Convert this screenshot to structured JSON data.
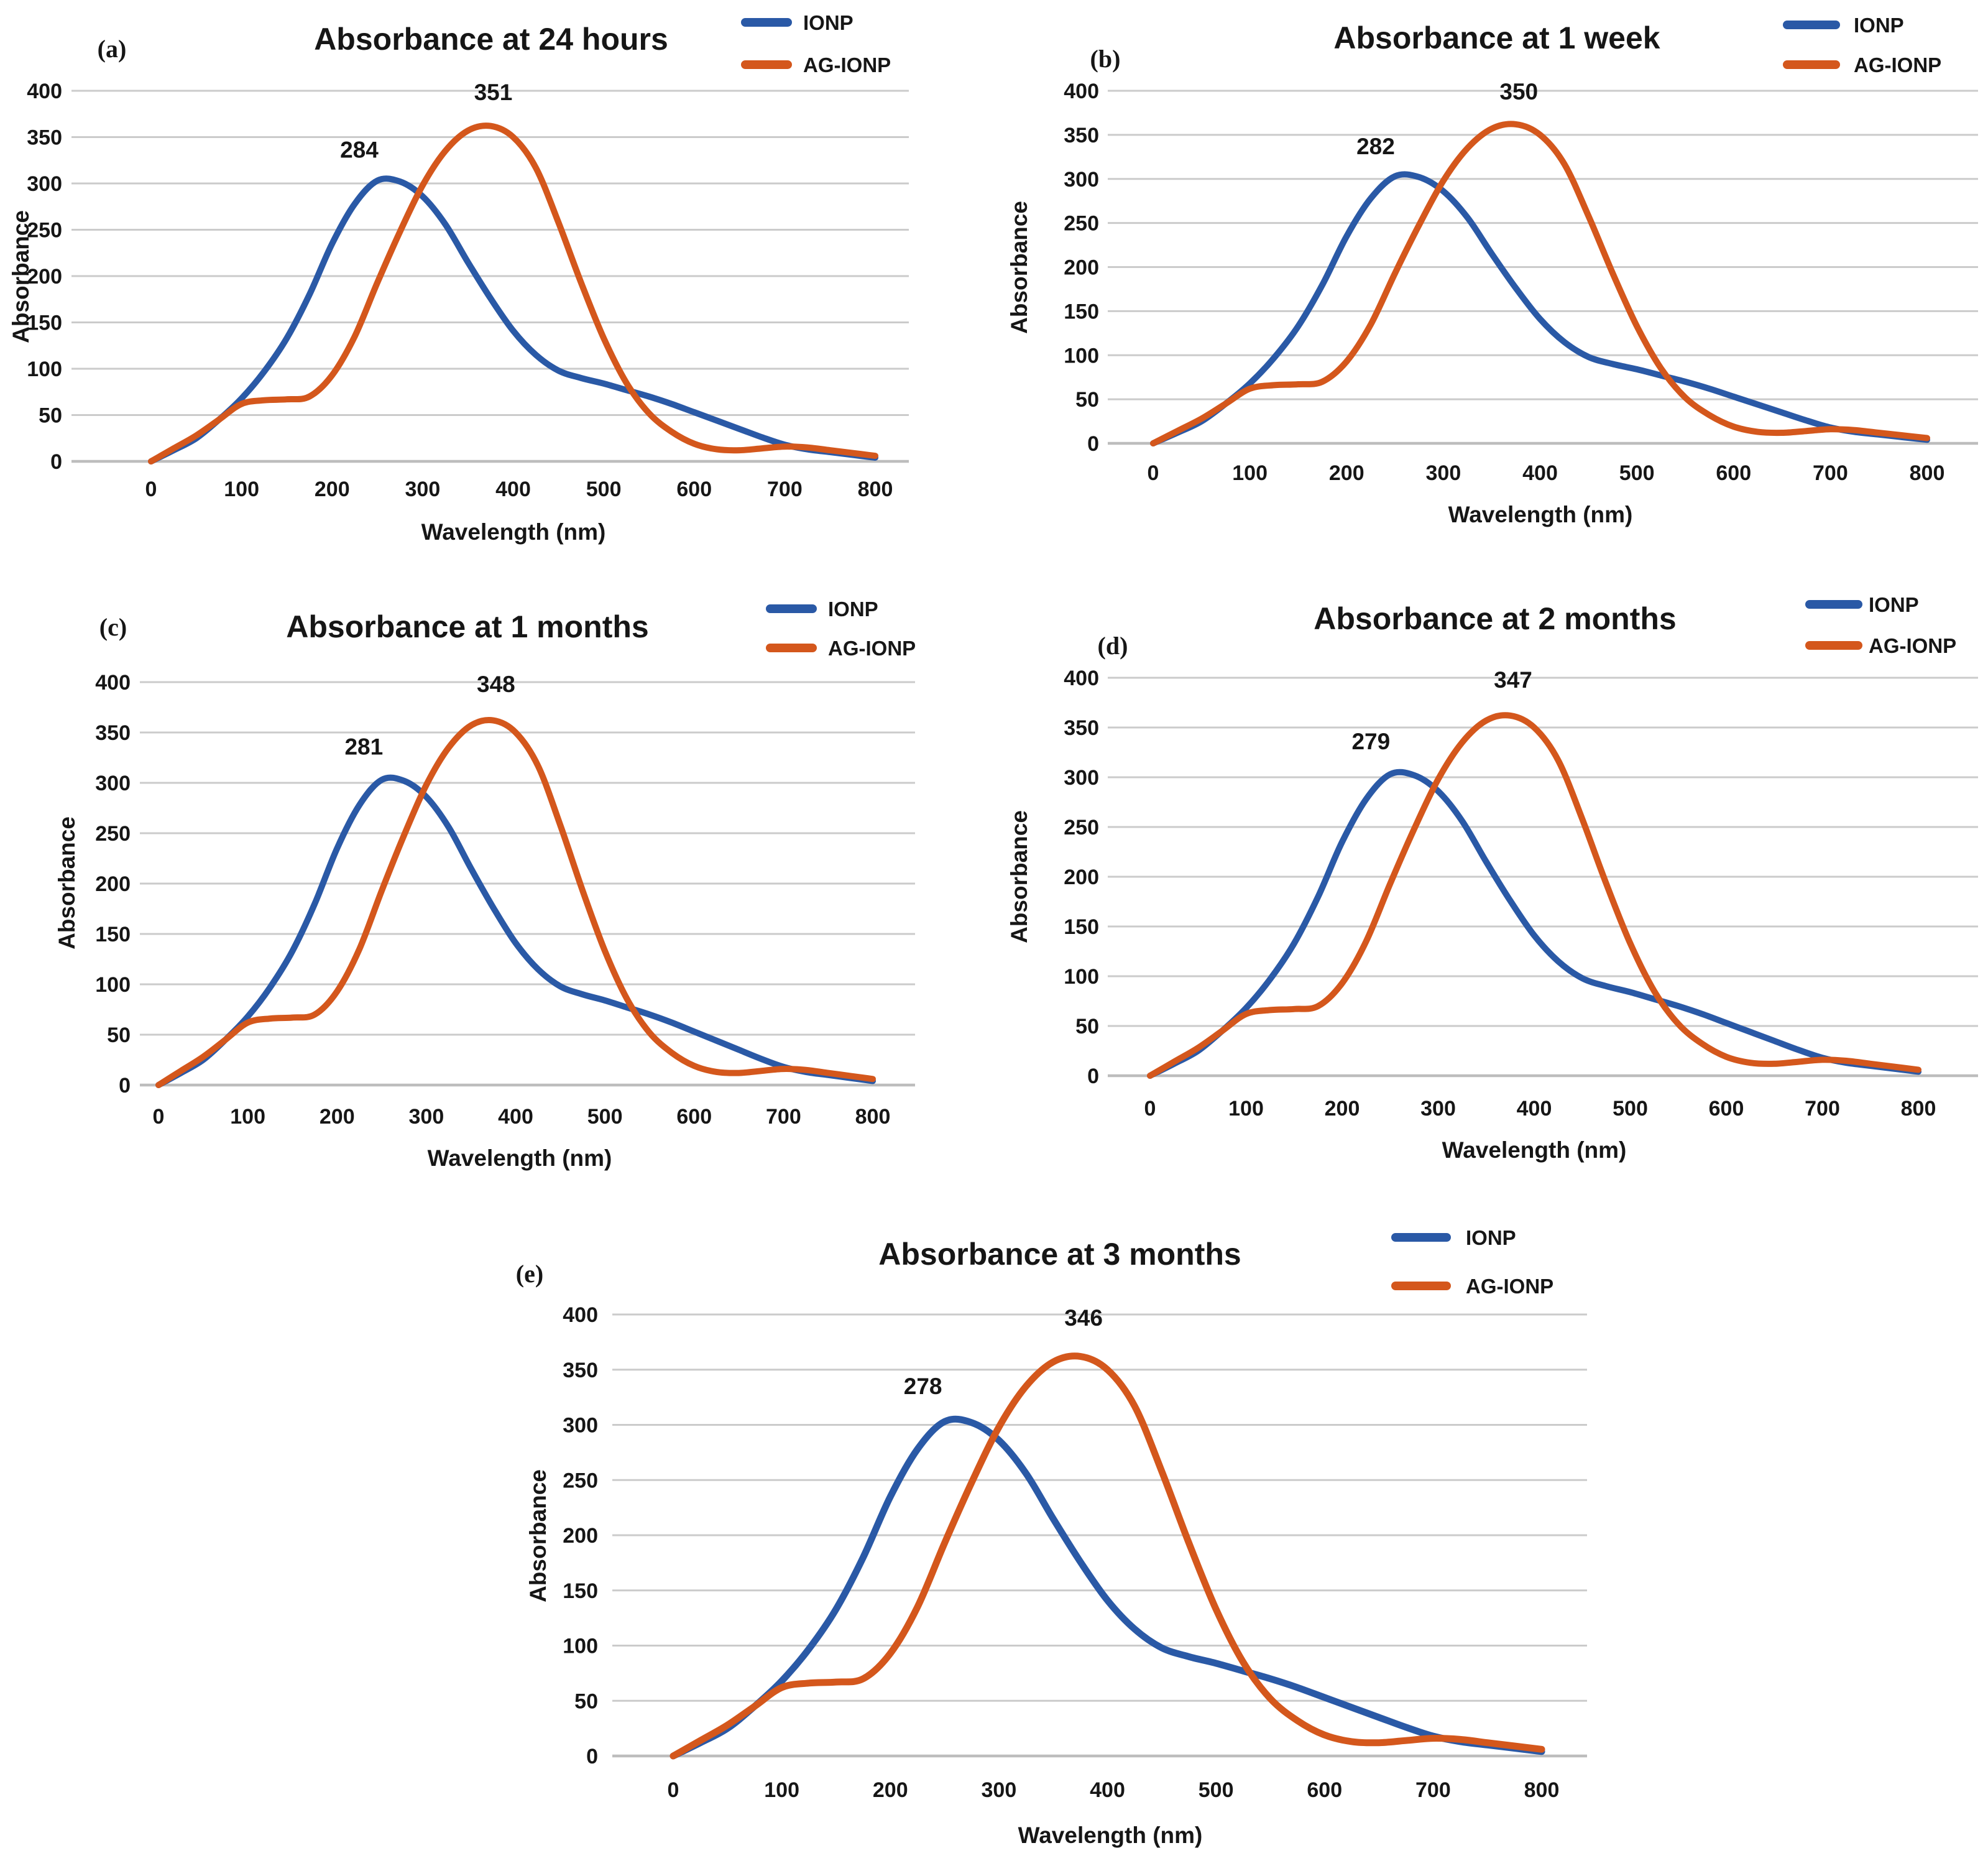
{
  "colors": {
    "ionp": "#2a59a6",
    "ag_ionp": "#d4571c",
    "grid": "#cbcbcb",
    "zero_line": "#bdbdbd",
    "text": "#161616"
  },
  "axes": {
    "x_label": "Wavelength (nm)",
    "y_label": "Absorbance",
    "x_ticks": [
      0,
      100,
      200,
      300,
      400,
      500,
      600,
      700,
      800
    ],
    "y_ticks": [
      0,
      50,
      100,
      150,
      200,
      250,
      300,
      350,
      400
    ],
    "xlim": [
      0,
      800
    ],
    "ylim": [
      0,
      400
    ]
  },
  "legend": {
    "items": [
      {
        "label": "IONP"
      },
      {
        "label": "AG-IONP"
      }
    ]
  },
  "chart_data": [
    {
      "id": "a",
      "type": "line",
      "panel_label": "(a)",
      "title": "Absorbance at 24 hours",
      "xlabel": "Wavelength (nm)",
      "ylabel": "Absorbance",
      "xlim": [
        0,
        800
      ],
      "ylim": [
        0,
        400
      ],
      "grid": "horizontal",
      "legend_position": "top-right",
      "x": [
        0,
        25,
        50,
        75,
        100,
        125,
        150,
        175,
        200,
        225,
        250,
        275,
        300,
        325,
        350,
        375,
        400,
        425,
        450,
        475,
        500,
        525,
        550,
        575,
        600,
        625,
        650,
        675,
        700,
        725,
        750,
        775,
        800
      ],
      "series": [
        {
          "name": "IONP",
          "color_key": "ionp",
          "peak_label": {
            "text": "284",
            "x": 230,
            "y": 328
          },
          "values": [
            0,
            12,
            25,
            45,
            68,
            97,
            133,
            180,
            235,
            278,
            303,
            302,
            286,
            256,
            215,
            176,
            141,
            115,
            98,
            90,
            84,
            77,
            70,
            62,
            53,
            44,
            35,
            26,
            18,
            13,
            10,
            7,
            4
          ]
        },
        {
          "name": "AG-IONP",
          "color_key": "ag_ionp",
          "peak_label": {
            "text": "351",
            "x": 378,
            "y": 390
          },
          "values": [
            0,
            14,
            28,
            45,
            62,
            66,
            67,
            70,
            93,
            135,
            193,
            248,
            298,
            335,
            357,
            362,
            350,
            317,
            258,
            193,
            133,
            85,
            52,
            32,
            19,
            13,
            12,
            14,
            16,
            15,
            12,
            9,
            6
          ]
        }
      ]
    },
    {
      "id": "b",
      "type": "line",
      "panel_label": "(b)",
      "title": "Absorbance at 1 week",
      "xlabel": "Wavelength (nm)",
      "ylabel": "Absorbance",
      "xlim": [
        0,
        800
      ],
      "ylim": [
        0,
        400
      ],
      "grid": "horizontal",
      "legend_position": "top-right",
      "x": [
        0,
        25,
        50,
        75,
        100,
        125,
        150,
        175,
        200,
        225,
        250,
        275,
        300,
        325,
        350,
        375,
        400,
        425,
        450,
        475,
        500,
        525,
        550,
        575,
        600,
        625,
        650,
        675,
        700,
        725,
        750,
        775,
        800
      ],
      "series": [
        {
          "name": "IONP",
          "color_key": "ionp",
          "peak_label": {
            "text": "282",
            "x": 230,
            "y": 328
          },
          "values": [
            0,
            12,
            25,
            45,
            68,
            97,
            133,
            180,
            235,
            278,
            303,
            302,
            286,
            256,
            215,
            176,
            141,
            115,
            98,
            90,
            84,
            77,
            70,
            62,
            53,
            44,
            35,
            26,
            18,
            13,
            10,
            7,
            4
          ]
        },
        {
          "name": "AG-IONP",
          "color_key": "ag_ionp",
          "peak_label": {
            "text": "350",
            "x": 378,
            "y": 390
          },
          "values": [
            0,
            14,
            28,
            45,
            62,
            66,
            67,
            70,
            93,
            135,
            193,
            248,
            298,
            335,
            357,
            362,
            350,
            317,
            258,
            193,
            133,
            85,
            52,
            32,
            19,
            13,
            12,
            14,
            16,
            15,
            12,
            9,
            6
          ]
        }
      ]
    },
    {
      "id": "c",
      "type": "line",
      "panel_label": "(c)",
      "title": "Absorbance at 1 months",
      "xlabel": "Wavelength (nm)",
      "ylabel": "Absorbance",
      "xlim": [
        0,
        800
      ],
      "ylim": [
        0,
        400
      ],
      "grid": "horizontal",
      "legend_position": "top-right",
      "x": [
        0,
        25,
        50,
        75,
        100,
        125,
        150,
        175,
        200,
        225,
        250,
        275,
        300,
        325,
        350,
        375,
        400,
        425,
        450,
        475,
        500,
        525,
        550,
        575,
        600,
        625,
        650,
        675,
        700,
        725,
        750,
        775,
        800
      ],
      "series": [
        {
          "name": "IONP",
          "color_key": "ionp",
          "peak_label": {
            "text": "281",
            "x": 230,
            "y": 328
          },
          "values": [
            0,
            12,
            25,
            45,
            68,
            97,
            133,
            180,
            235,
            278,
            303,
            302,
            286,
            256,
            215,
            176,
            141,
            115,
            98,
            90,
            84,
            77,
            70,
            62,
            53,
            44,
            35,
            26,
            18,
            13,
            10,
            7,
            4
          ]
        },
        {
          "name": "AG-IONP",
          "color_key": "ag_ionp",
          "peak_label": {
            "text": "348",
            "x": 378,
            "y": 390
          },
          "values": [
            0,
            14,
            28,
            45,
            62,
            66,
            67,
            70,
            93,
            135,
            193,
            248,
            298,
            335,
            357,
            362,
            350,
            317,
            258,
            193,
            133,
            85,
            52,
            32,
            19,
            13,
            12,
            14,
            16,
            15,
            12,
            9,
            6
          ]
        }
      ]
    },
    {
      "id": "d",
      "type": "line",
      "panel_label": "(d)",
      "title": "Absorbance at 2 months",
      "xlabel": "Wavelength (nm)",
      "ylabel": "Absorbance",
      "xlim": [
        0,
        800
      ],
      "ylim": [
        0,
        400
      ],
      "grid": "horizontal",
      "legend_position": "top-right",
      "x": [
        0,
        25,
        50,
        75,
        100,
        125,
        150,
        175,
        200,
        225,
        250,
        275,
        300,
        325,
        350,
        375,
        400,
        425,
        450,
        475,
        500,
        525,
        550,
        575,
        600,
        625,
        650,
        675,
        700,
        725,
        750,
        775,
        800
      ],
      "series": [
        {
          "name": "IONP",
          "color_key": "ionp",
          "peak_label": {
            "text": "279",
            "x": 230,
            "y": 328
          },
          "values": [
            0,
            12,
            25,
            45,
            68,
            97,
            133,
            180,
            235,
            278,
            303,
            302,
            286,
            256,
            215,
            176,
            141,
            115,
            98,
            90,
            84,
            77,
            70,
            62,
            53,
            44,
            35,
            26,
            18,
            13,
            10,
            7,
            4
          ]
        },
        {
          "name": "AG-IONP",
          "color_key": "ag_ionp",
          "peak_label": {
            "text": "347",
            "x": 378,
            "y": 390
          },
          "values": [
            0,
            14,
            28,
            45,
            62,
            66,
            67,
            70,
            93,
            135,
            193,
            248,
            298,
            335,
            357,
            362,
            350,
            317,
            258,
            193,
            133,
            85,
            52,
            32,
            19,
            13,
            12,
            14,
            16,
            15,
            12,
            9,
            6
          ]
        }
      ]
    },
    {
      "id": "e",
      "type": "line",
      "panel_label": "(e)",
      "title": "Absorbance at 3 months",
      "xlabel": "Wavelength (nm)",
      "ylabel": "Absorbance",
      "xlim": [
        0,
        800
      ],
      "ylim": [
        0,
        400
      ],
      "grid": "horizontal",
      "legend_position": "top-right",
      "x": [
        0,
        25,
        50,
        75,
        100,
        125,
        150,
        175,
        200,
        225,
        250,
        275,
        300,
        325,
        350,
        375,
        400,
        425,
        450,
        475,
        500,
        525,
        550,
        575,
        600,
        625,
        650,
        675,
        700,
        725,
        750,
        775,
        800
      ],
      "series": [
        {
          "name": "IONP",
          "color_key": "ionp",
          "peak_label": {
            "text": "278",
            "x": 230,
            "y": 328
          },
          "values": [
            0,
            12,
            25,
            45,
            68,
            97,
            133,
            180,
            235,
            278,
            303,
            302,
            286,
            256,
            215,
            176,
            141,
            115,
            98,
            90,
            84,
            77,
            70,
            62,
            53,
            44,
            35,
            26,
            18,
            13,
            10,
            7,
            4
          ]
        },
        {
          "name": "AG-IONP",
          "color_key": "ag_ionp",
          "peak_label": {
            "text": "346",
            "x": 378,
            "y": 390
          },
          "values": [
            0,
            14,
            28,
            45,
            62,
            66,
            67,
            70,
            93,
            135,
            193,
            248,
            298,
            335,
            357,
            362,
            350,
            317,
            258,
            193,
            133,
            85,
            52,
            32,
            19,
            13,
            12,
            14,
            16,
            15,
            12,
            9,
            6
          ]
        }
      ]
    }
  ]
}
